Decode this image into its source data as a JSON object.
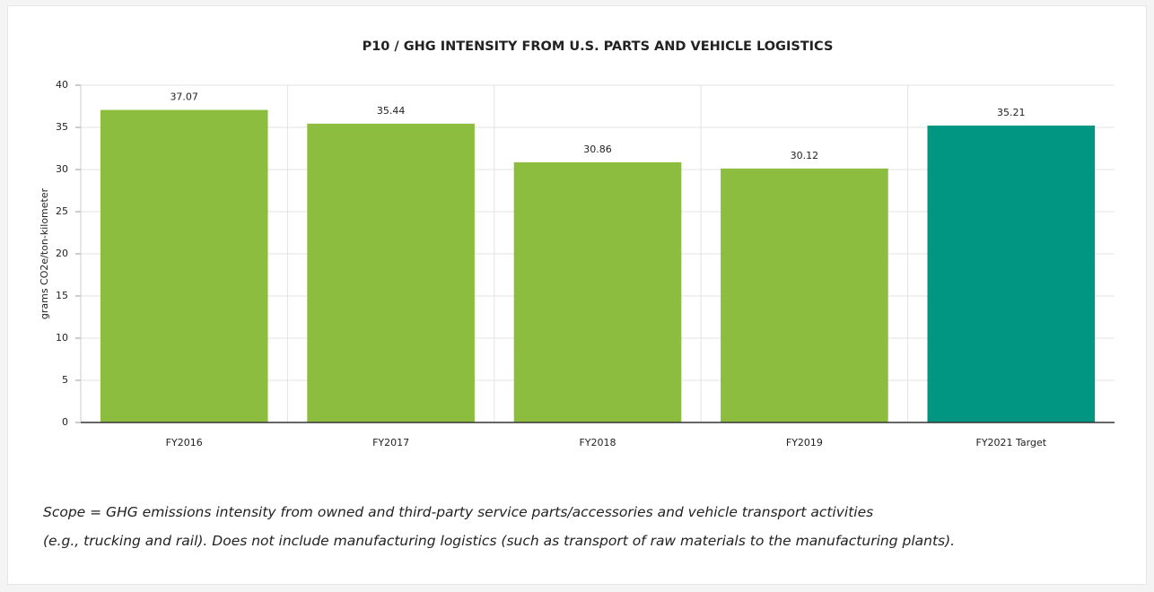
{
  "chart_data": {
    "type": "bar",
    "title": "P10 / GHG INTENSITY FROM U.S. PARTS AND VEHICLE LOGISTICS",
    "ylabel": "grams CO2e/ton-kilometer",
    "categories": [
      "FY2016",
      "FY2017",
      "FY2018",
      "FY2019",
      "FY2021 Target"
    ],
    "values": [
      37.07,
      35.44,
      30.86,
      30.12,
      35.21
    ],
    "colors": [
      "#8cbd3f",
      "#8cbd3f",
      "#8cbd3f",
      "#8cbd3f",
      "#009681"
    ],
    "ylim": [
      0,
      40
    ],
    "yticks": [
      0,
      5,
      10,
      15,
      20,
      25,
      30,
      35,
      40
    ],
    "grid": true
  },
  "footnote": [
    "Scope = GHG emissions intensity from owned and third-party service parts/accessories and vehicle transport activities",
    "(e.g., trucking and rail). Does not include manufacturing logistics (such as transport of raw materials to the manufacturing plants)."
  ]
}
